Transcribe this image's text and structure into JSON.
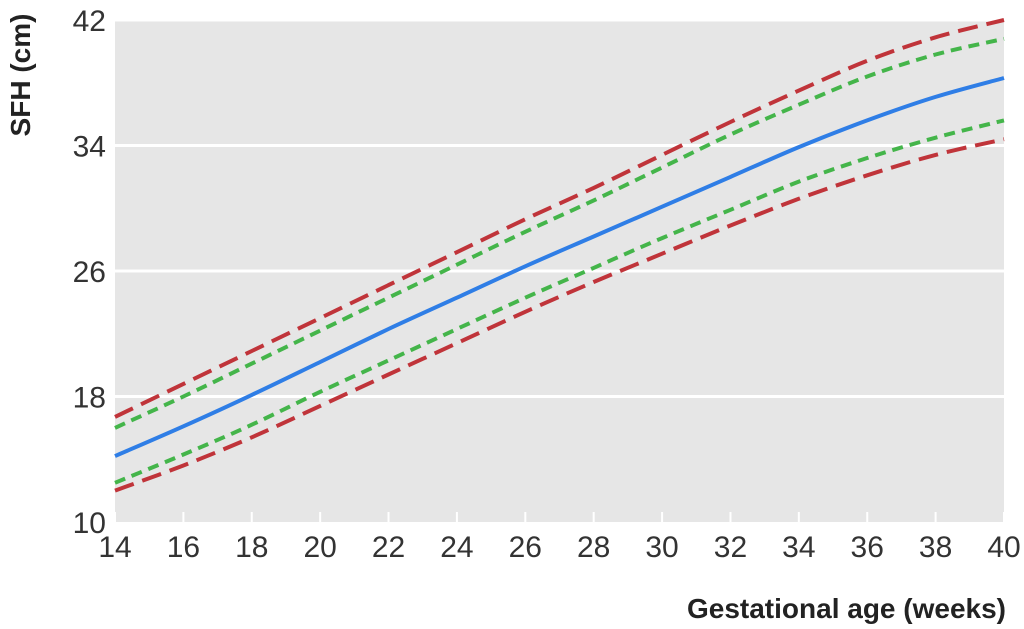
{
  "chart_data": {
    "type": "line",
    "title": "",
    "xlabel": "Gestational age (weeks)",
    "ylabel": "SFH (cm)",
    "xlim": [
      14,
      40
    ],
    "ylim": [
      10,
      42
    ],
    "x_ticks": [
      "14",
      "16",
      "18",
      "20",
      "22",
      "24",
      "26",
      "28",
      "30",
      "32",
      "34",
      "36",
      "38",
      "40"
    ],
    "y_ticks": [
      "10",
      "18",
      "26",
      "34",
      "42"
    ],
    "grid": "horizontal",
    "background_color": "#e6e6e6",
    "colors": {
      "median": "#2f7ee6",
      "inner_centiles": "#44b54a",
      "outer_centiles": "#c0343a"
    },
    "x": [
      14,
      16,
      18,
      20,
      22,
      24,
      26,
      28,
      30,
      32,
      34,
      36,
      38,
      40
    ],
    "series": [
      {
        "style": "dashed-long",
        "color": "#c0343a",
        "values": [
          16.7,
          18.8,
          20.9,
          23.0,
          25.1,
          27.2,
          29.3,
          31.3,
          33.4,
          35.5,
          37.5,
          39.4,
          40.9,
          42.0
        ]
      },
      {
        "style": "dashed-short",
        "color": "#44b54a",
        "values": [
          16.0,
          18.0,
          20.1,
          22.2,
          24.3,
          26.4,
          28.5,
          30.5,
          32.6,
          34.7,
          36.6,
          38.4,
          39.8,
          40.8
        ]
      },
      {
        "style": "solid",
        "color": "#2f7ee6",
        "values": [
          14.2,
          16.1,
          18.1,
          20.2,
          22.3,
          24.3,
          26.3,
          28.2,
          30.1,
          32.0,
          33.9,
          35.6,
          37.1,
          38.3
        ]
      },
      {
        "style": "dashed-short",
        "color": "#44b54a",
        "values": [
          12.5,
          14.3,
          16.2,
          18.3,
          20.3,
          22.3,
          24.3,
          26.2,
          28.1,
          29.9,
          31.7,
          33.2,
          34.5,
          35.6
        ]
      },
      {
        "style": "dashed-long",
        "color": "#c0343a",
        "values": [
          12.0,
          13.6,
          15.4,
          17.4,
          19.4,
          21.4,
          23.4,
          25.3,
          27.1,
          28.9,
          30.6,
          32.1,
          33.4,
          34.4
        ]
      }
    ]
  }
}
